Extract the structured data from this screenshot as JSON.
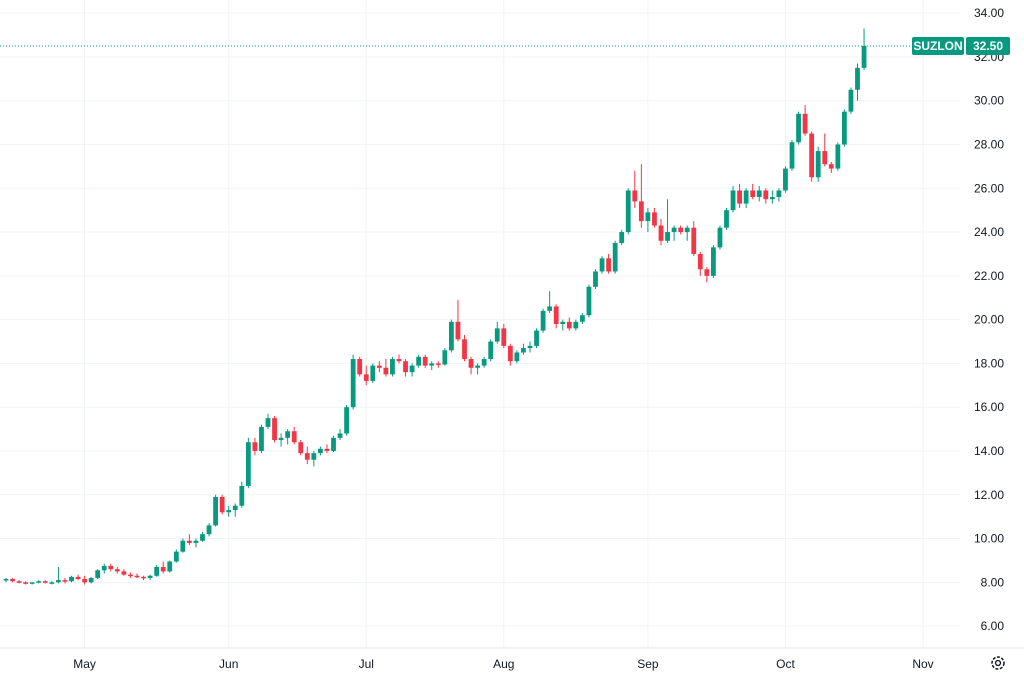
{
  "chart_data": {
    "type": "candlestick",
    "title": "",
    "symbol": "SUZLON",
    "last_price": "32.50",
    "colors": {
      "up": "#089981",
      "down": "#f23645",
      "grid": "#f0f3fa",
      "text": "#131722",
      "badge": "#089981"
    },
    "y_range": [
      5.0,
      34.6
    ],
    "y_ticks": [
      "6.00",
      "8.00",
      "10.00",
      "12.00",
      "14.00",
      "16.00",
      "18.00",
      "20.00",
      "22.00",
      "24.00",
      "26.00",
      "28.00",
      "30.00",
      "32.00",
      "34.00"
    ],
    "x_ticks": [
      {
        "label": "May",
        "index": 12
      },
      {
        "label": "Jun",
        "index": 34
      },
      {
        "label": "Jul",
        "index": 55
      },
      {
        "label": "Aug",
        "index": 76
      },
      {
        "label": "Sep",
        "index": 98
      },
      {
        "label": "Oct",
        "index": 119
      },
      {
        "label": "Nov",
        "index": 140
      }
    ],
    "candles": [
      [
        8.1,
        8.2,
        8.0,
        8.15
      ],
      [
        8.15,
        8.2,
        8.0,
        8.05
      ],
      [
        8.05,
        8.1,
        7.95,
        8.0
      ],
      [
        8.0,
        8.05,
        7.9,
        7.95
      ],
      [
        7.95,
        8.0,
        7.9,
        8.0
      ],
      [
        8.0,
        8.1,
        7.95,
        8.05
      ],
      [
        8.05,
        8.1,
        7.95,
        7.98
      ],
      [
        7.98,
        8.05,
        7.9,
        8.0
      ],
      [
        8.0,
        8.7,
        7.95,
        8.1
      ],
      [
        8.1,
        8.2,
        7.95,
        8.05
      ],
      [
        8.05,
        8.3,
        8.0,
        8.25
      ],
      [
        8.25,
        8.35,
        8.1,
        8.15
      ],
      [
        8.15,
        8.3,
        7.9,
        8.0
      ],
      [
        8.0,
        8.25,
        7.95,
        8.2
      ],
      [
        8.2,
        8.6,
        8.15,
        8.55
      ],
      [
        8.55,
        8.85,
        8.4,
        8.75
      ],
      [
        8.75,
        8.85,
        8.5,
        8.6
      ],
      [
        8.6,
        8.7,
        8.4,
        8.5
      ],
      [
        8.5,
        8.6,
        8.3,
        8.35
      ],
      [
        8.35,
        8.45,
        8.2,
        8.3
      ],
      [
        8.3,
        8.4,
        8.2,
        8.25
      ],
      [
        8.25,
        8.3,
        8.1,
        8.2
      ],
      [
        8.2,
        8.35,
        8.1,
        8.3
      ],
      [
        8.3,
        8.8,
        8.25,
        8.7
      ],
      [
        8.7,
        8.95,
        8.4,
        8.5
      ],
      [
        8.5,
        9.0,
        8.45,
        8.95
      ],
      [
        8.95,
        9.5,
        8.9,
        9.4
      ],
      [
        9.4,
        10.0,
        9.35,
        9.9
      ],
      [
        9.9,
        10.2,
        9.7,
        9.8
      ],
      [
        9.8,
        10.0,
        9.6,
        9.9
      ],
      [
        9.9,
        10.3,
        9.85,
        10.2
      ],
      [
        10.2,
        10.7,
        10.1,
        10.6
      ],
      [
        10.6,
        12.0,
        10.55,
        11.9
      ],
      [
        11.9,
        12.0,
        11.1,
        11.2
      ],
      [
        11.2,
        11.5,
        11.0,
        11.3
      ],
      [
        11.3,
        11.6,
        11.0,
        11.5
      ],
      [
        11.5,
        12.6,
        11.4,
        12.4
      ],
      [
        12.4,
        14.6,
        12.3,
        14.4
      ],
      [
        14.4,
        14.6,
        13.8,
        14.0
      ],
      [
        14.0,
        15.2,
        13.9,
        15.1
      ],
      [
        15.1,
        15.7,
        15.0,
        15.5
      ],
      [
        15.5,
        15.6,
        14.4,
        14.5
      ],
      [
        14.5,
        14.8,
        14.2,
        14.6
      ],
      [
        14.6,
        15.0,
        14.3,
        14.9
      ],
      [
        14.9,
        15.1,
        14.3,
        14.4
      ],
      [
        14.4,
        14.5,
        13.8,
        13.9
      ],
      [
        13.9,
        14.2,
        13.4,
        13.6
      ],
      [
        13.6,
        14.0,
        13.3,
        13.9
      ],
      [
        13.9,
        14.2,
        13.8,
        14.1
      ],
      [
        14.1,
        14.3,
        13.9,
        14.0
      ],
      [
        14.0,
        14.7,
        13.95,
        14.6
      ],
      [
        14.6,
        15.0,
        14.5,
        14.8
      ],
      [
        14.8,
        16.1,
        14.7,
        16.0
      ],
      [
        16.0,
        18.4,
        15.9,
        18.2
      ],
      [
        18.2,
        18.3,
        17.4,
        17.5
      ],
      [
        17.5,
        17.9,
        17.0,
        17.2
      ],
      [
        17.2,
        18.0,
        17.1,
        17.9
      ],
      [
        17.9,
        18.1,
        17.6,
        17.8
      ],
      [
        17.8,
        18.2,
        17.4,
        17.5
      ],
      [
        17.5,
        18.3,
        17.4,
        18.2
      ],
      [
        18.2,
        18.4,
        18.0,
        18.1
      ],
      [
        18.1,
        18.2,
        17.4,
        17.6
      ],
      [
        17.6,
        18.0,
        17.4,
        17.9
      ],
      [
        17.9,
        18.4,
        17.8,
        18.3
      ],
      [
        18.3,
        18.4,
        17.8,
        17.9
      ],
      [
        17.9,
        18.1,
        17.7,
        18.0
      ],
      [
        18.0,
        18.1,
        17.8,
        17.95
      ],
      [
        17.95,
        18.7,
        17.9,
        18.6
      ],
      [
        18.6,
        20.0,
        18.5,
        19.9
      ],
      [
        19.9,
        20.9,
        19.0,
        19.1
      ],
      [
        19.1,
        19.3,
        18.1,
        18.2
      ],
      [
        18.2,
        18.3,
        17.5,
        17.8
      ],
      [
        17.8,
        18.0,
        17.5,
        17.9
      ],
      [
        17.9,
        18.3,
        17.8,
        18.2
      ],
      [
        18.2,
        19.1,
        18.1,
        19.0
      ],
      [
        19.0,
        19.9,
        18.9,
        19.6
      ],
      [
        19.6,
        19.8,
        18.7,
        18.8
      ],
      [
        18.8,
        18.9,
        17.9,
        18.1
      ],
      [
        18.1,
        18.6,
        18.0,
        18.5
      ],
      [
        18.5,
        18.9,
        18.4,
        18.7
      ],
      [
        18.7,
        19.0,
        18.5,
        18.8
      ],
      [
        18.8,
        19.6,
        18.7,
        19.5
      ],
      [
        19.5,
        20.5,
        19.4,
        20.4
      ],
      [
        20.4,
        21.3,
        20.3,
        20.6
      ],
      [
        20.6,
        20.7,
        19.6,
        19.8
      ],
      [
        19.8,
        20.0,
        19.5,
        19.9
      ],
      [
        19.9,
        20.1,
        19.5,
        19.6
      ],
      [
        19.6,
        20.0,
        19.5,
        19.9
      ],
      [
        19.9,
        20.3,
        19.8,
        20.2
      ],
      [
        20.2,
        21.6,
        20.1,
        21.5
      ],
      [
        21.5,
        22.3,
        21.4,
        22.2
      ],
      [
        22.2,
        22.9,
        22.1,
        22.8
      ],
      [
        22.8,
        23.0,
        22.1,
        22.2
      ],
      [
        22.2,
        23.6,
        22.1,
        23.5
      ],
      [
        23.5,
        24.1,
        23.4,
        24.0
      ],
      [
        24.0,
        26.0,
        23.9,
        25.9
      ],
      [
        25.9,
        26.8,
        25.1,
        25.4
      ],
      [
        25.4,
        27.1,
        24.2,
        24.5
      ],
      [
        24.5,
        25.1,
        24.0,
        24.9
      ],
      [
        24.9,
        25.1,
        24.2,
        24.3
      ],
      [
        24.3,
        24.6,
        23.4,
        23.6
      ],
      [
        23.6,
        25.5,
        23.5,
        24.0
      ],
      [
        24.0,
        24.3,
        23.6,
        24.2
      ],
      [
        24.2,
        24.3,
        23.9,
        24.0
      ],
      [
        24.0,
        24.3,
        23.6,
        24.2
      ],
      [
        24.2,
        24.5,
        22.9,
        23.0
      ],
      [
        23.0,
        23.1,
        22.0,
        22.3
      ],
      [
        22.3,
        22.4,
        21.7,
        22.0
      ],
      [
        22.0,
        23.4,
        21.9,
        23.3
      ],
      [
        23.3,
        24.3,
        23.2,
        24.2
      ],
      [
        24.2,
        25.1,
        24.1,
        25.0
      ],
      [
        25.0,
        26.1,
        24.9,
        25.9
      ],
      [
        25.9,
        26.2,
        25.1,
        25.3
      ],
      [
        25.3,
        26.0,
        25.1,
        25.9
      ],
      [
        25.9,
        26.2,
        25.5,
        25.6
      ],
      [
        25.6,
        26.1,
        25.4,
        25.9
      ],
      [
        25.9,
        26.0,
        25.3,
        25.5
      ],
      [
        25.5,
        25.9,
        25.3,
        25.6
      ],
      [
        25.6,
        26.0,
        25.4,
        25.9
      ],
      [
        25.9,
        27.0,
        25.8,
        26.9
      ],
      [
        26.9,
        28.2,
        26.8,
        28.1
      ],
      [
        28.1,
        29.5,
        28.0,
        29.4
      ],
      [
        29.4,
        29.8,
        28.4,
        28.5
      ],
      [
        28.5,
        28.6,
        26.3,
        26.5
      ],
      [
        26.5,
        27.9,
        26.3,
        27.7
      ],
      [
        27.7,
        28.5,
        27.0,
        27.1
      ],
      [
        27.1,
        27.2,
        26.7,
        26.9
      ],
      [
        26.9,
        28.1,
        26.8,
        28.0
      ],
      [
        28.0,
        29.6,
        27.9,
        29.5
      ],
      [
        29.5,
        30.6,
        29.4,
        30.5
      ],
      [
        30.5,
        31.7,
        30.0,
        31.5
      ],
      [
        31.5,
        33.3,
        31.4,
        32.5
      ]
    ]
  }
}
